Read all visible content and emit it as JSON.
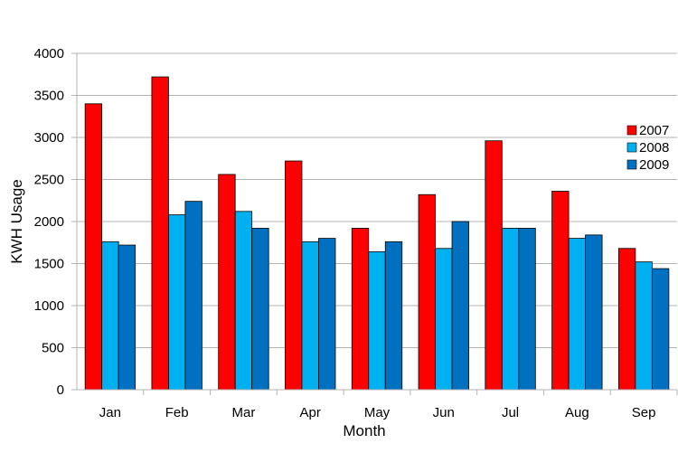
{
  "chart_data": {
    "type": "bar",
    "title": "",
    "xlabel": "Month",
    "ylabel": "KWH Usage",
    "categories": [
      "Jan",
      "Feb",
      "Mar",
      "Apr",
      "May",
      "Jun",
      "Jul",
      "Aug",
      "Sep"
    ],
    "series": [
      {
        "name": "2007",
        "color": "#ff0000",
        "values": [
          3400,
          3720,
          2560,
          2720,
          1920,
          2320,
          2960,
          2360,
          1680
        ]
      },
      {
        "name": "2008",
        "color": "#00b0f0",
        "values": [
          1760,
          2080,
          2120,
          1760,
          1640,
          1680,
          1920,
          1800,
          1520
        ]
      },
      {
        "name": "2009",
        "color": "#0070c0",
        "values": [
          1720,
          2240,
          1920,
          1800,
          1760,
          2000,
          1920,
          1840,
          1440
        ]
      }
    ],
    "ylim": [
      0,
      4000
    ],
    "yticks": [
      0,
      500,
      1000,
      1500,
      2000,
      2500,
      3000,
      3500,
      4000
    ],
    "grid": true,
    "legend_position": "right"
  }
}
